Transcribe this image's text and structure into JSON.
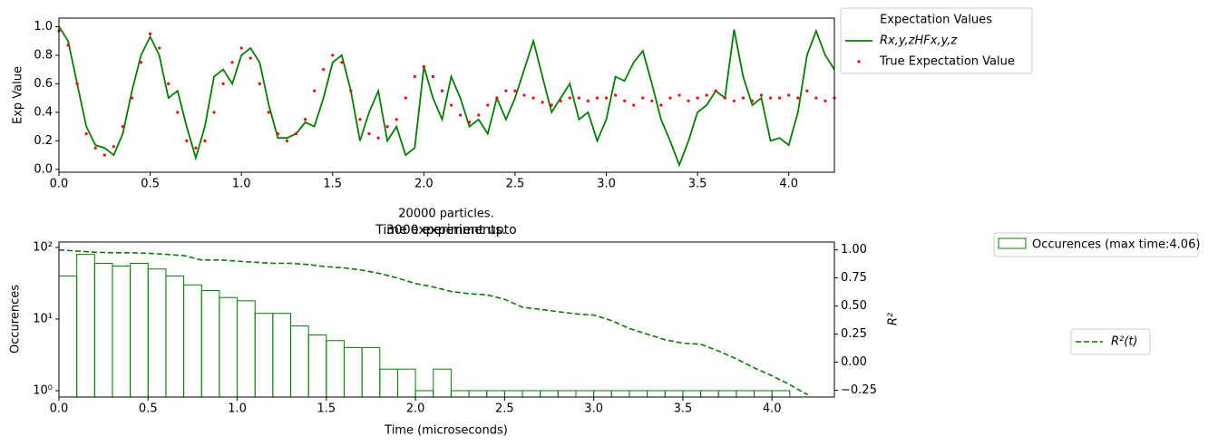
{
  "chart_data": [
    {
      "type": "line",
      "x": [
        0,
        0.05,
        0.1,
        0.15,
        0.2,
        0.25,
        0.3,
        0.35,
        0.4,
        0.45,
        0.5,
        0.55,
        0.6,
        0.65,
        0.7,
        0.75,
        0.8,
        0.85,
        0.9,
        0.95,
        1.0,
        1.05,
        1.1,
        1.15,
        1.2,
        1.25,
        1.3,
        1.35,
        1.4,
        1.45,
        1.5,
        1.55,
        1.6,
        1.65,
        1.7,
        1.75,
        1.8,
        1.85,
        1.9,
        1.95,
        2.0,
        2.05,
        2.1,
        2.15,
        2.2,
        2.25,
        2.3,
        2.35,
        2.4,
        2.45,
        2.5,
        2.55,
        2.6,
        2.65,
        2.7,
        2.75,
        2.8,
        2.85,
        2.9,
        2.95,
        3.0,
        3.05,
        3.1,
        3.15,
        3.2,
        3.25,
        3.3,
        3.35,
        3.4,
        3.45,
        3.5,
        3.55,
        3.6,
        3.65,
        3.7,
        3.75,
        3.8,
        3.85,
        3.9,
        3.95,
        4.0,
        4.05,
        4.1,
        4.15,
        4.2,
        4.25
      ],
      "series": [
        {
          "name": "Rx,y,zHFx,y,z",
          "type": "line",
          "color": "#008000",
          "values": [
            1.0,
            0.9,
            0.6,
            0.3,
            0.17,
            0.15,
            0.1,
            0.25,
            0.55,
            0.8,
            0.93,
            0.8,
            0.5,
            0.55,
            0.3,
            0.08,
            0.3,
            0.65,
            0.7,
            0.6,
            0.8,
            0.85,
            0.75,
            0.45,
            0.22,
            0.22,
            0.25,
            0.33,
            0.3,
            0.5,
            0.75,
            0.8,
            0.55,
            0.2,
            0.4,
            0.55,
            0.2,
            0.3,
            0.1,
            0.15,
            0.72,
            0.5,
            0.35,
            0.65,
            0.5,
            0.3,
            0.35,
            0.25,
            0.5,
            0.35,
            0.5,
            0.7,
            0.9,
            0.65,
            0.4,
            0.5,
            0.6,
            0.35,
            0.4,
            0.2,
            0.35,
            0.65,
            0.62,
            0.75,
            0.83,
            0.6,
            0.35,
            0.2,
            0.03,
            0.2,
            0.4,
            0.45,
            0.55,
            0.5,
            0.98,
            0.65,
            0.45,
            0.5,
            0.2,
            0.22,
            0.17,
            0.4,
            0.8,
            0.97,
            0.8,
            0.7
          ]
        },
        {
          "name": "True Expectation Value",
          "type": "scatter",
          "color": "#ff0000",
          "values": [
            0.97,
            0.87,
            0.6,
            0.25,
            0.15,
            0.1,
            0.16,
            0.3,
            0.5,
            0.75,
            0.95,
            0.85,
            0.6,
            0.4,
            0.2,
            0.15,
            0.2,
            0.4,
            0.6,
            0.75,
            0.85,
            0.78,
            0.6,
            0.4,
            0.25,
            0.2,
            0.25,
            0.35,
            0.55,
            0.7,
            0.8,
            0.75,
            0.55,
            0.35,
            0.25,
            0.22,
            0.3,
            0.35,
            0.5,
            0.65,
            0.72,
            0.65,
            0.55,
            0.45,
            0.38,
            0.33,
            0.38,
            0.45,
            0.5,
            0.55,
            0.55,
            0.52,
            0.5,
            0.47,
            0.45,
            0.48,
            0.5,
            0.5,
            0.48,
            0.5,
            0.5,
            0.52,
            0.48,
            0.45,
            0.5,
            0.48,
            0.45,
            0.5,
            0.52,
            0.48,
            0.5,
            0.52,
            0.55,
            0.5,
            0.48,
            0.5,
            0.48,
            0.52,
            0.5,
            0.5,
            0.52,
            0.5,
            0.55,
            0.5,
            0.48,
            0.5
          ]
        }
      ],
      "legend_title": "Expectation Values",
      "ylabel": "Exp Value",
      "xlim": [
        0,
        4.25
      ],
      "ylim": [
        -0.02,
        1.06
      ],
      "xticks": [
        {
          "value": 0,
          "label": "0.0"
        },
        {
          "value": 0.5,
          "label": "0.5"
        },
        {
          "value": 1,
          "label": "1.0"
        },
        {
          "value": 1.5,
          "label": "1.5"
        },
        {
          "value": 2,
          "label": "2.0"
        },
        {
          "value": 2.5,
          "label": "2.5"
        },
        {
          "value": 3,
          "label": "3.0"
        },
        {
          "value": 3.5,
          "label": "3.5"
        },
        {
          "value": 4,
          "label": "4.0"
        }
      ],
      "yticks": [
        {
          "value": 0,
          "label": "0.0"
        },
        {
          "value": 0.2,
          "label": "0.2"
        },
        {
          "value": 0.4,
          "label": "0.4"
        },
        {
          "value": 0.6,
          "label": "0.6"
        },
        {
          "value": 0.8,
          "label": "0.8"
        },
        {
          "value": 1,
          "label": "1.0"
        }
      ]
    },
    {
      "type": "histogram",
      "title": "20000 particles.",
      "subtitles": [
        "Time experiment upto",
        "3000 experiments."
      ],
      "name": "Occurences (max time:4.06)",
      "color": "#008000",
      "bins": [
        0,
        0.1,
        0.2,
        0.3,
        0.4,
        0.5,
        0.6,
        0.7,
        0.8,
        0.9,
        1.0,
        1.1,
        1.2,
        1.3,
        1.4,
        1.5,
        1.6,
        1.7,
        1.8,
        1.9,
        2.0,
        2.1,
        2.2,
        2.3,
        2.4,
        2.5,
        2.6,
        2.7,
        2.8,
        2.9,
        3.0,
        3.1,
        3.2,
        3.3,
        3.4,
        3.5,
        3.6,
        3.7,
        3.8,
        3.9,
        4.0,
        4.1
      ],
      "counts": [
        40,
        80,
        60,
        55,
        60,
        50,
        40,
        30,
        25,
        20,
        18,
        12,
        12,
        8,
        6,
        5,
        4,
        4,
        2,
        2,
        1,
        2,
        1,
        1,
        1,
        1,
        1,
        1,
        1,
        1,
        1,
        1,
        1,
        1,
        1,
        1,
        1,
        1,
        1,
        1,
        1
      ],
      "series": [
        {
          "name": "R²(t)",
          "axis": "y2",
          "color": "#008000",
          "dash": true,
          "x": [
            0,
            0.1,
            0.2,
            0.3,
            0.4,
            0.5,
            0.6,
            0.7,
            0.8,
            0.9,
            1.0,
            1.1,
            1.2,
            1.3,
            1.4,
            1.5,
            1.6,
            1.7,
            1.8,
            1.9,
            2.0,
            2.1,
            2.2,
            2.3,
            2.4,
            2.5,
            2.6,
            2.7,
            2.8,
            2.9,
            3.0,
            3.1,
            3.2,
            3.3,
            3.4,
            3.5,
            3.6,
            3.7,
            3.8,
            3.9,
            4.0,
            4.1,
            4.2
          ],
          "values": [
            1.0,
            0.99,
            0.98,
            0.975,
            0.975,
            0.97,
            0.96,
            0.95,
            0.91,
            0.91,
            0.9,
            0.89,
            0.88,
            0.88,
            0.87,
            0.85,
            0.84,
            0.82,
            0.79,
            0.75,
            0.7,
            0.67,
            0.63,
            0.61,
            0.6,
            0.56,
            0.49,
            0.47,
            0.45,
            0.43,
            0.42,
            0.37,
            0.3,
            0.25,
            0.2,
            0.17,
            0.16,
            0.1,
            0.03,
            -0.05,
            -0.12,
            -0.2,
            -0.29
          ]
        }
      ],
      "xlabel": "Time (microseconds)",
      "ylabel": "Occurences",
      "y2label": "R²",
      "ylog": true,
      "xlim": [
        0,
        4.35
      ],
      "ylim": [
        0.815,
        119
      ],
      "y2lim": [
        -0.31,
        1.07
      ],
      "xticks": [
        {
          "value": 0,
          "label": "0.0"
        },
        {
          "value": 0.5,
          "label": "0.5"
        },
        {
          "value": 1,
          "label": "1.0"
        },
        {
          "value": 1.5,
          "label": "1.5"
        },
        {
          "value": 2,
          "label": "2.0"
        },
        {
          "value": 2.5,
          "label": "2.5"
        },
        {
          "value": 3,
          "label": "3.0"
        },
        {
          "value": 3.5,
          "label": "3.5"
        },
        {
          "value": 4,
          "label": "4.0"
        }
      ],
      "yticks": [
        {
          "value": 1,
          "label": "10⁰"
        },
        {
          "value": 10,
          "label": "10¹"
        },
        {
          "value": 100,
          "label": "10²"
        }
      ],
      "y2ticks": [
        {
          "value": -0.25,
          "label": "−0.25"
        },
        {
          "value": 0,
          "label": "0.00"
        },
        {
          "value": 0.25,
          "label": "0.25"
        },
        {
          "value": 0.5,
          "label": "0.50"
        },
        {
          "value": 0.75,
          "label": "0.75"
        },
        {
          "value": 1,
          "label": "1.00"
        }
      ]
    }
  ]
}
